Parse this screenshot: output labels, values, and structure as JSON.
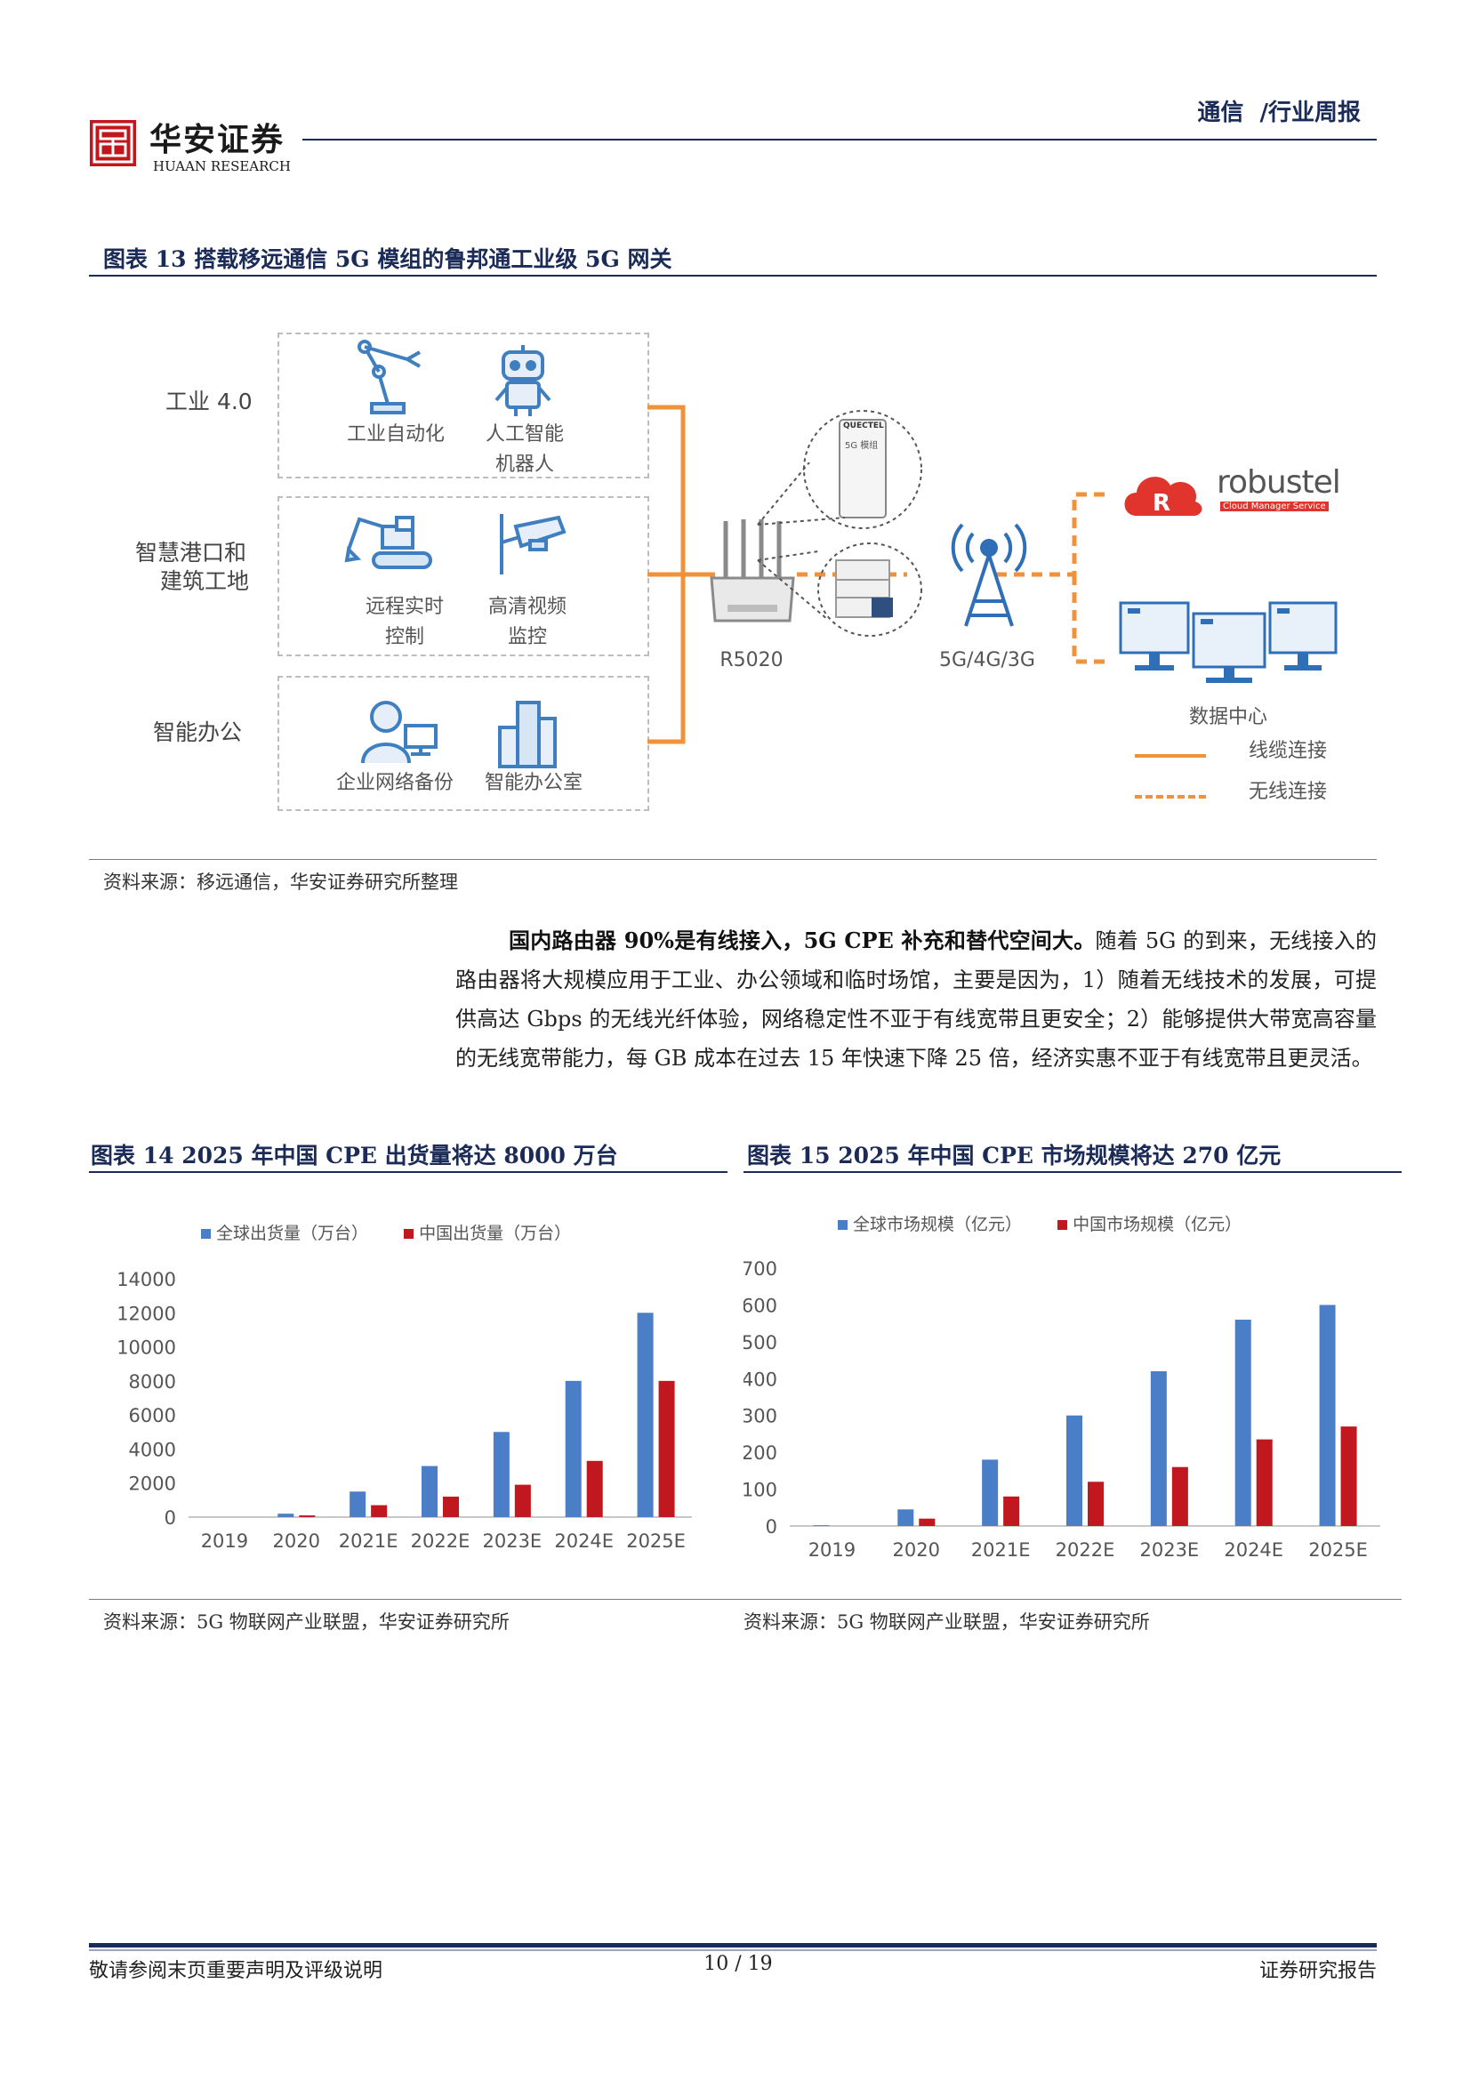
{
  "header": {
    "logo_cn": "华安证券",
    "logo_en": "HUAAN RESEARCH",
    "section": "通信  /行业周报"
  },
  "figure13": {
    "title": "图表 13  搭载移远通信 5G 模组的鲁邦通工业级 5G 网关",
    "groups": [
      {
        "label": "工业 4.0",
        "items": [
          {
            "line1": "工业自动化",
            "line2": ""
          },
          {
            "line1": "人工智能",
            "line2": "机器人"
          }
        ]
      },
      {
        "label_line1": "智慧港口和",
        "label_line2": "建筑工地",
        "items": [
          {
            "line1": "远程实时",
            "line2": "控制"
          },
          {
            "line1": "高清视频",
            "line2": "监控"
          }
        ]
      },
      {
        "label": "智能办公",
        "items": [
          {
            "line1": "企业网络备份",
            "line2": ""
          },
          {
            "line1": "智能办公室",
            "line2": ""
          }
        ]
      }
    ],
    "router_label": "R5020",
    "module_text": "5G 模组",
    "module_brand": "QUECTEL",
    "tower_label": "5G/4G/3G",
    "brand_name": "robustel",
    "brand_tagline": "Cloud Manager Service",
    "datacenter_label": "数据中心",
    "legend_wired": "线缆连接",
    "legend_wireless": "无线连接",
    "source": "资料来源：移远通信，华安证券研究所整理"
  },
  "paragraph": {
    "bold": "国内路由器 90%是有线接入，5G CPE 补充和替代空间大。",
    "text": "随着 5G 的到来，无线接入的路由器将大规模应用于工业、办公领域和临时场馆，主要是因为，1）随着无线技术的发展，可提供高达 Gbps 的无线光纤体验，网络稳定性不亚于有线宽带且更安全；2）能够提供大带宽高容量的无线宽带能力，每 GB 成本在过去 15 年快速下降 25 倍，经济实惠不亚于有线宽带且更灵活。"
  },
  "figure14": {
    "title": "图表 14 2025 年中国 CPE 出货量将达 8000 万台",
    "source": "资料来源：5G 物联网产业联盟，华安证券研究所"
  },
  "figure15": {
    "title": "图表 15 2025 年中国 CPE 市场规模将达 270 亿元",
    "source": "资料来源：5G 物联网产业联盟，华安证券研究所"
  },
  "chart_data": [
    {
      "type": "bar",
      "categories": [
        "2019",
        "2020",
        "2021E",
        "2022E",
        "2023E",
        "2024E",
        "2025E"
      ],
      "series": [
        {
          "name": "全球出货量（万台）",
          "values": [
            0,
            200,
            1500,
            3000,
            5000,
            8000,
            12000
          ],
          "color": "#4a7ec7"
        },
        {
          "name": "中国出货量（万台）",
          "values": [
            0,
            100,
            700,
            1200,
            1900,
            3300,
            8000
          ],
          "color": "#c0181e"
        }
      ],
      "ylim": [
        0,
        14000
      ],
      "yticks": [
        "0",
        "2000",
        "4000",
        "6000",
        "8000",
        "10000",
        "12000",
        "14000"
      ],
      "legend": "top",
      "grid": false
    },
    {
      "type": "bar",
      "categories": [
        "2019",
        "2020",
        "2021E",
        "2022E",
        "2023E",
        "2024E",
        "2025E"
      ],
      "series": [
        {
          "name": "全球市场规模（亿元）",
          "values": [
            2,
            45,
            180,
            300,
            420,
            560,
            600
          ],
          "color": "#4a7ec7"
        },
        {
          "name": "中国市场规模（亿元）",
          "values": [
            0,
            20,
            80,
            120,
            160,
            235,
            270
          ],
          "color": "#c0181e"
        }
      ],
      "ylim": [
        0,
        700
      ],
      "yticks": [
        "0",
        "100",
        "200",
        "300",
        "400",
        "500",
        "600",
        "700"
      ],
      "legend": "top",
      "grid": false
    }
  ],
  "footer": {
    "left": "敬请参阅末页重要声明及评级说明",
    "page": "10 / 19",
    "right": "证券研究报告"
  }
}
